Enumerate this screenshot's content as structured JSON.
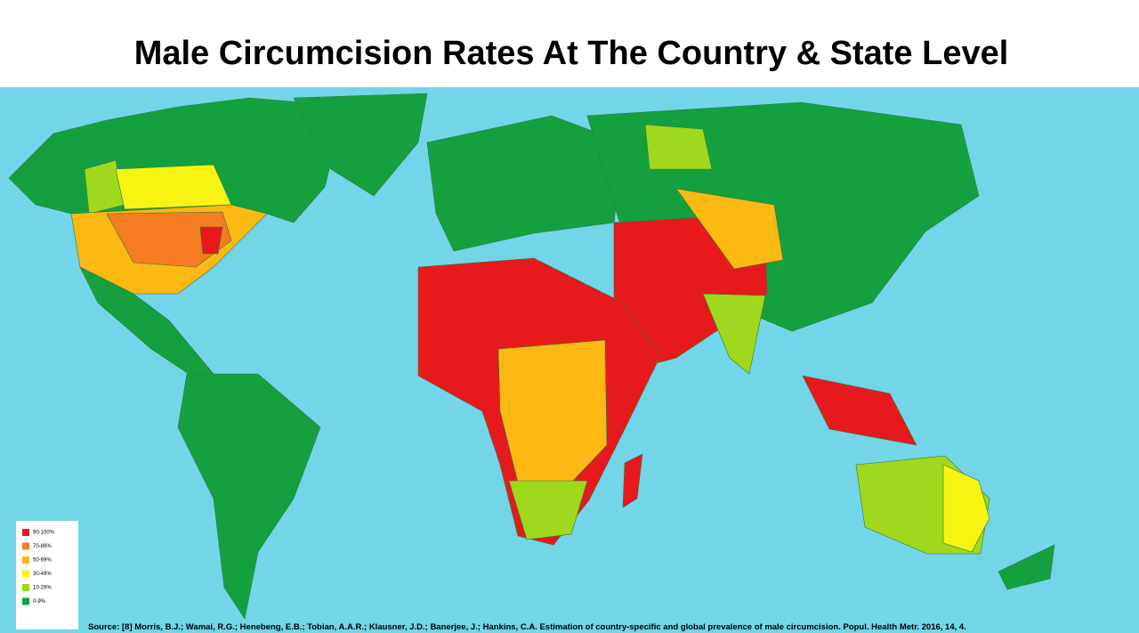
{
  "header": {
    "title": "Male Circumcision Rates At The Country & State Level"
  },
  "legend": {
    "items": [
      {
        "label": "90-100%",
        "color": "#e8191c"
      },
      {
        "label": "70-89%",
        "color": "#f57c20"
      },
      {
        "label": "50-69%",
        "color": "#fcb813"
      },
      {
        "label": "30-49%",
        "color": "#f7f413"
      },
      {
        "label": "10-29%",
        "color": "#9fd81c"
      },
      {
        "label": "0-9%",
        "color": "#15a03f"
      }
    ]
  },
  "footer": {
    "source": "Source: [8] Morris, B.J.; Wamai, R.G.; Henebeng, E.B.; Tobian, A.A.R.; Klausner, J.D.; Banerjee, J.; Hankins, C.A. Estimation of country-specific and global prevalence of male circumcision. Popul. Health Metr. 2016, 14, 4."
  }
}
